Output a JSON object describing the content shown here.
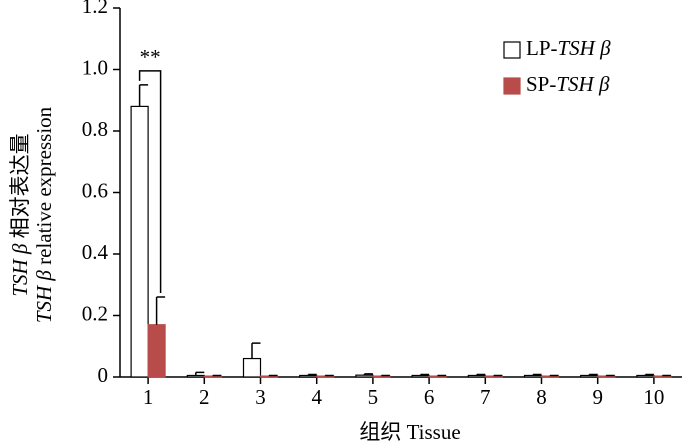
{
  "chart_data": {
    "type": "bar",
    "ylabel": [
      "TSH β 相对表达量",
      "TSH β relative expression"
    ],
    "xlabel": "组织 Tissue",
    "annotation": "**",
    "categories": [
      "1",
      "2",
      "3",
      "4",
      "5",
      "6",
      "7",
      "8",
      "9",
      "10"
    ],
    "series": [
      {
        "name": "LP-TSH β",
        "color": "#ffffff",
        "values": [
          0.88,
          0.005,
          0.06,
          0.005,
          0.006,
          0.005,
          0.005,
          0.005,
          0.005,
          0.005
        ],
        "errors": [
          0.07,
          0.01,
          0.05,
          0.003,
          0.004,
          0.003,
          0.003,
          0.003,
          0.003,
          0.003
        ]
      },
      {
        "name": "SP-TSH β",
        "color": "#b84c4a",
        "values": [
          0.17,
          0.003,
          0.003,
          0.003,
          0.003,
          0.003,
          0.003,
          0.003,
          0.003,
          0.003
        ],
        "errors": [
          0.09,
          0.002,
          0.002,
          0.002,
          0.002,
          0.002,
          0.002,
          0.002,
          0.002,
          0.002
        ]
      }
    ],
    "ylim": [
      0,
      1.2
    ],
    "yticks": [
      {
        "value": 0,
        "label": "0"
      },
      {
        "value": 0.2,
        "label": "0.2"
      },
      {
        "value": 0.4,
        "label": "0.4"
      },
      {
        "value": 0.6,
        "label": "0.6"
      },
      {
        "value": 0.8,
        "label": "0.8"
      },
      {
        "value": 1.0,
        "label": "1.0"
      },
      {
        "value": 1.2,
        "label": "1.2"
      }
    ],
    "legend": "upper right"
  }
}
